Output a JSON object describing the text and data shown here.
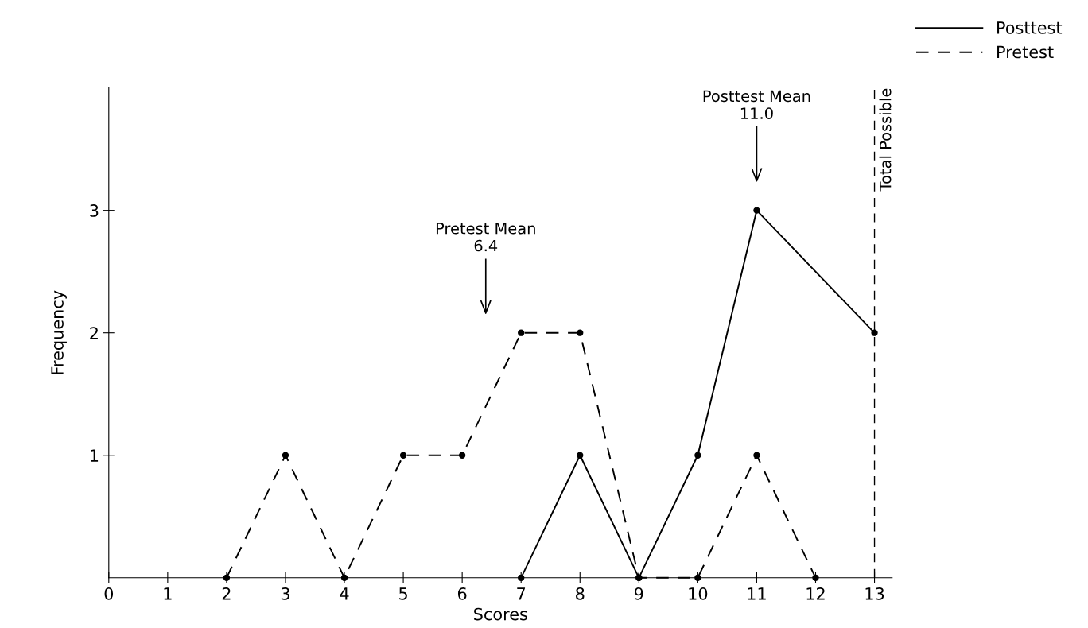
{
  "chart_data": {
    "type": "line",
    "xlabel": "Scores",
    "ylabel": "Frequency",
    "xlim": [
      0,
      13.3
    ],
    "xticks": [
      0,
      1,
      2,
      3,
      4,
      5,
      6,
      7,
      8,
      9,
      10,
      11,
      12,
      13
    ],
    "ylim": [
      0,
      4
    ],
    "yticks": [
      1,
      2,
      3
    ],
    "series": [
      {
        "name": "Posttest",
        "color": "#000000",
        "line_style": "solid",
        "x": [
          7,
          8,
          9,
          10,
          11,
          13
        ],
        "values": [
          0,
          1,
          0,
          1,
          3,
          2
        ]
      },
      {
        "name": "Pretest",
        "color": "#000000",
        "line_style": "dashed",
        "x": [
          2,
          3,
          4,
          5,
          6,
          7,
          8,
          9,
          10,
          11,
          12
        ],
        "values": [
          0,
          1,
          0,
          1,
          1,
          2,
          2,
          0,
          0,
          1,
          0
        ]
      }
    ],
    "ref_lines": [
      {
        "axis": "x",
        "value": 13,
        "label": "Total Possible",
        "color": "#000000",
        "line_style": "dashed"
      },
      {
        "axis": "x",
        "value": 6.4,
        "label": "Pretest Mean\n6.4",
        "color": "#000000"
      },
      {
        "axis": "x",
        "value": 11.0,
        "label": "Posttest Mean\n11.0",
        "color": "#000000"
      }
    ],
    "marker": "circle",
    "grid": false,
    "legend": "top right"
  }
}
